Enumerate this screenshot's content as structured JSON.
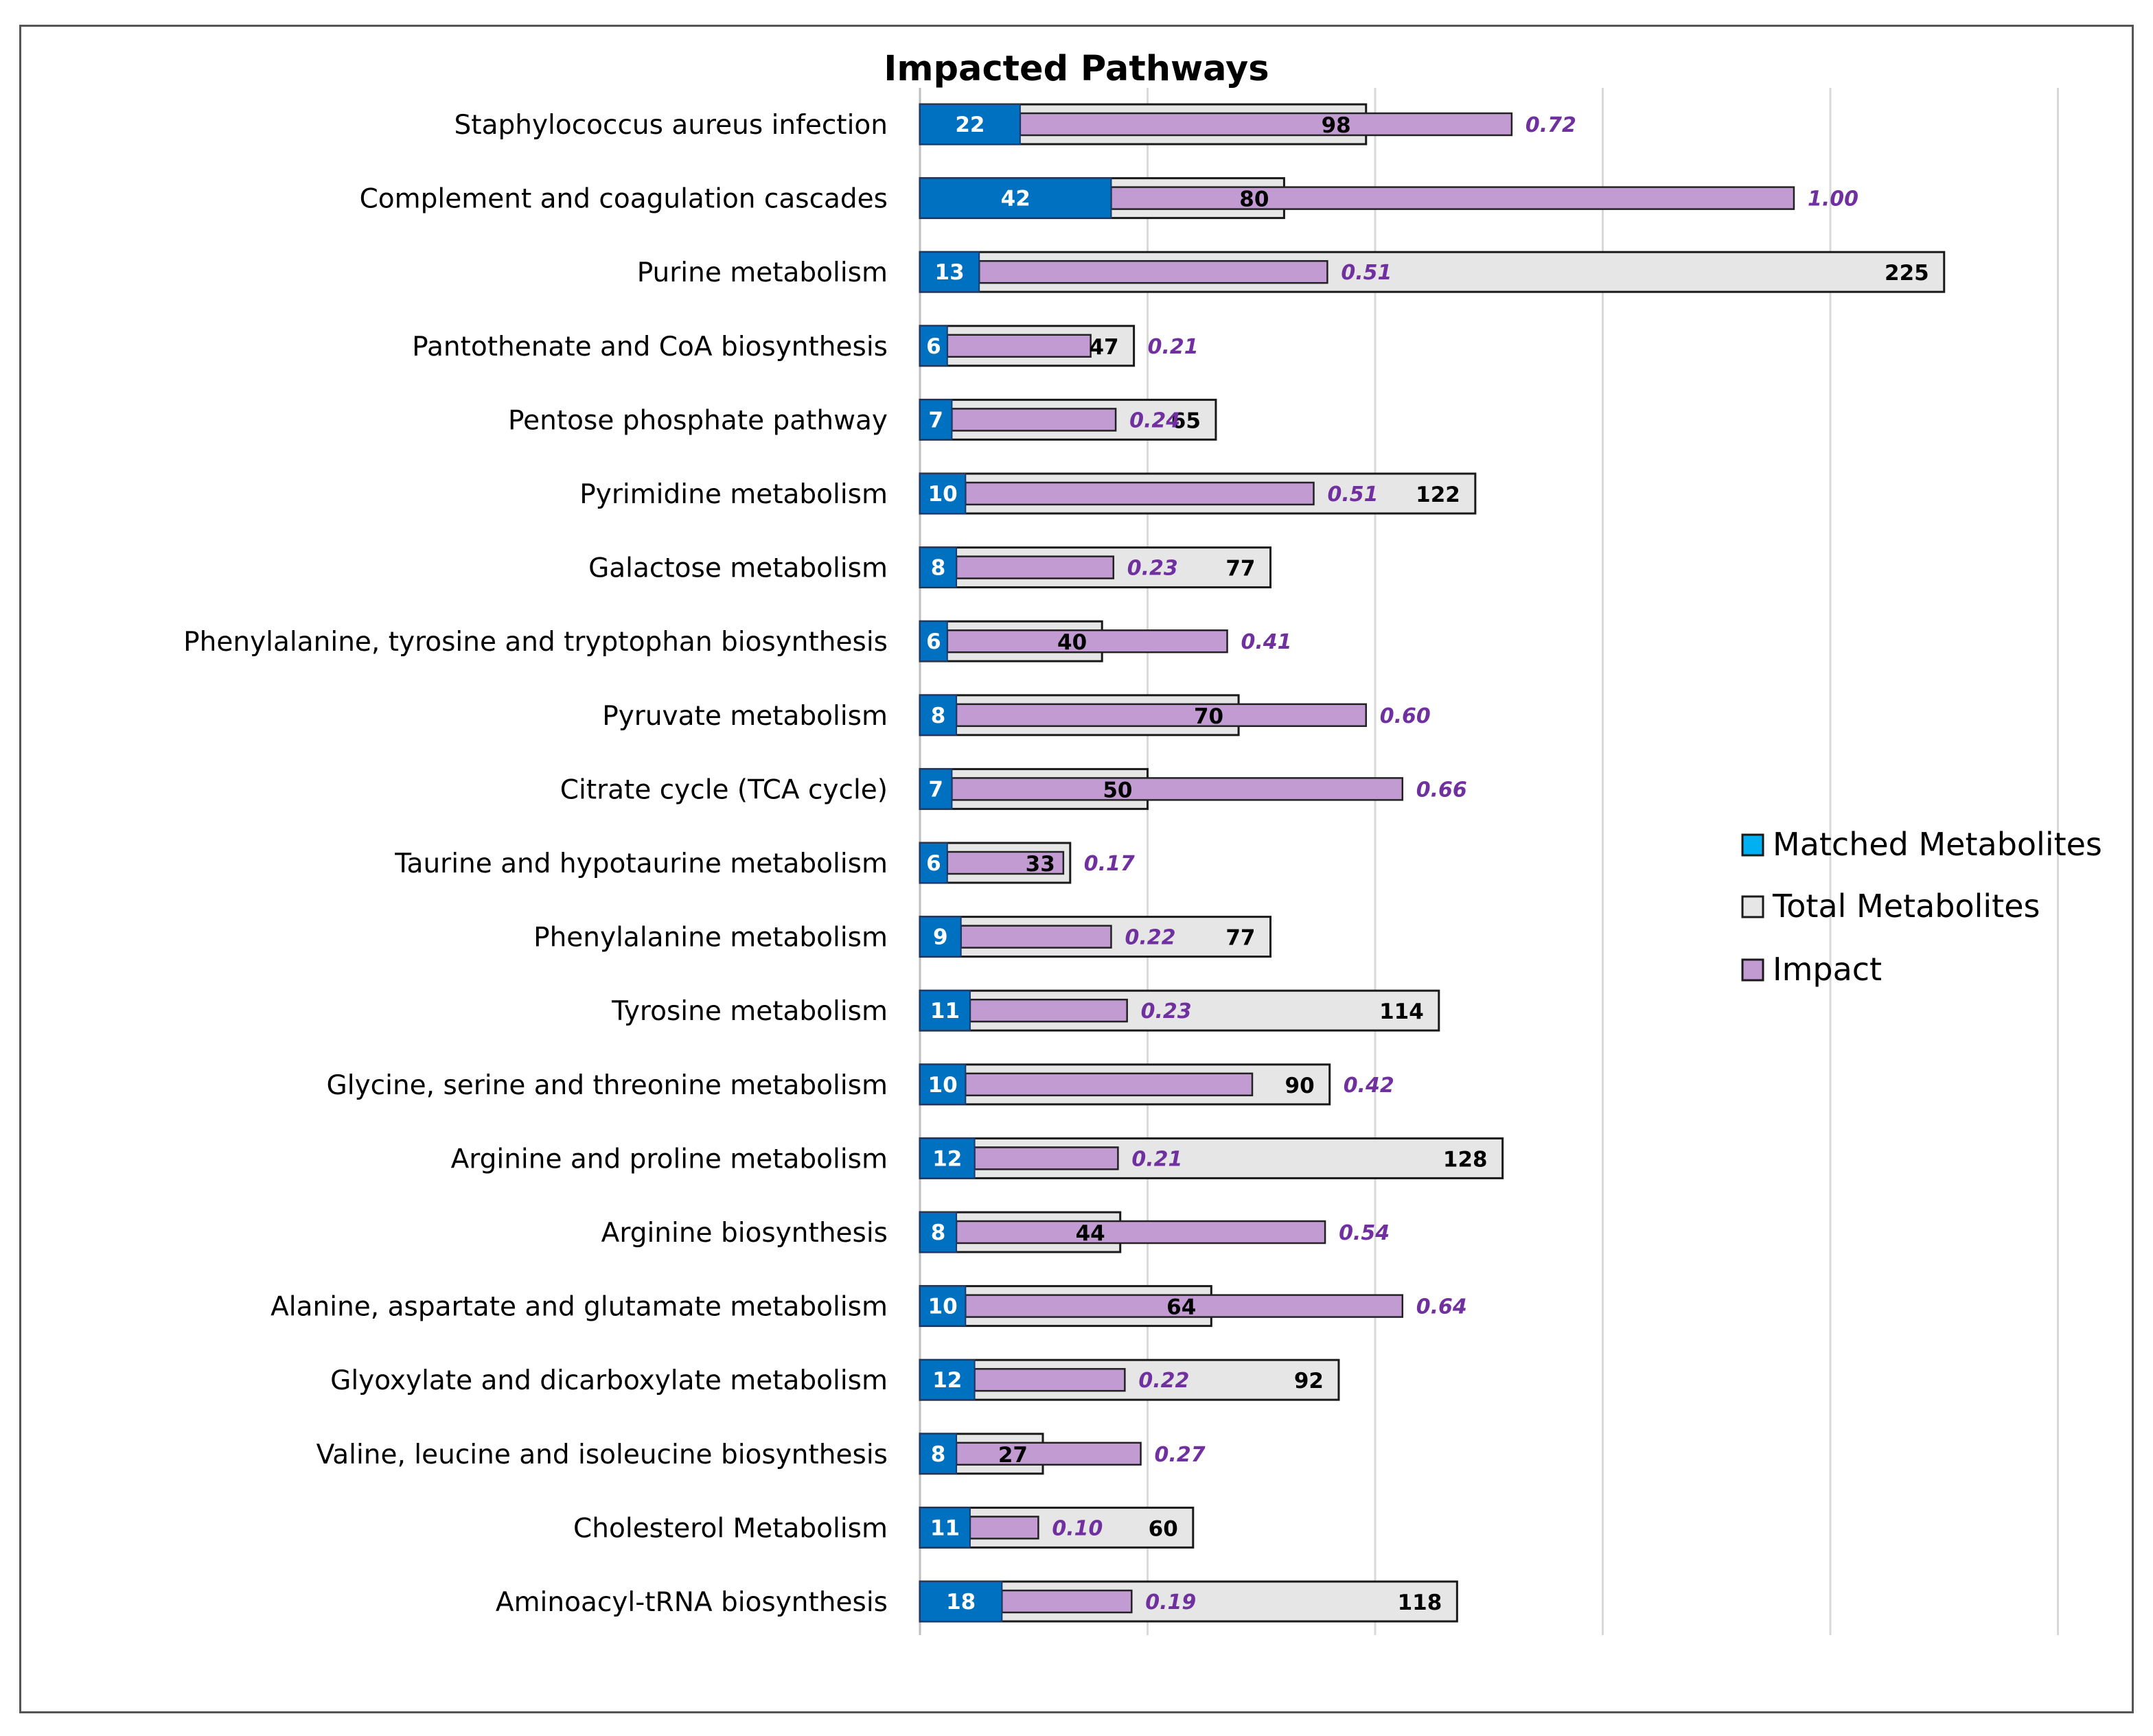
{
  "chart_data": {
    "type": "bar",
    "title": "Impacted Pathways",
    "xlim": [
      0,
      250
    ],
    "categories": [
      "Staphylococcus aureus infection",
      "Complement and coagulation cascades",
      "Purine metabolism",
      "Pantothenate and CoA biosynthesis",
      "Pentose phosphate pathway",
      "Pyrimidine metabolism",
      "Galactose metabolism",
      "Phenylalanine, tyrosine and tryptophan biosynthesis",
      "Pyruvate metabolism",
      "Citrate cycle (TCA cycle)",
      "Taurine and hypotaurine metabolism",
      "Phenylalanine metabolism",
      "Tyrosine metabolism",
      "Glycine, serine and threonine metabolism",
      "Arginine and proline metabolism",
      "Arginine biosynthesis",
      "Alanine, aspartate and glutamate metabolism",
      "Glyoxylate and dicarboxylate metabolism",
      "Valine, leucine and isoleucine biosynthesis",
      "Cholesterol Metabolism",
      "Aminoacyl-tRNA biosynthesis"
    ],
    "series": [
      {
        "name": "Matched Metabolites",
        "color": "#0070c0",
        "values": [
          22,
          42,
          13,
          6,
          7,
          10,
          8,
          6,
          8,
          7,
          6,
          9,
          11,
          10,
          12,
          8,
          10,
          12,
          8,
          11,
          18
        ]
      },
      {
        "name": "Total Metabolites",
        "color": "#e6e6e6",
        "values": [
          98,
          80,
          225,
          47,
          65,
          122,
          77,
          40,
          70,
          50,
          33,
          77,
          114,
          90,
          128,
          44,
          64,
          92,
          27,
          60,
          118
        ]
      },
      {
        "name": "Impact",
        "color": "#c39bd3",
        "values": [
          "0.72",
          "1.00",
          "0.51",
          "0.21",
          "0.24",
          "0.51",
          "0.23",
          "0.41",
          "0.60",
          "0.66",
          "0.17",
          "0.22",
          "0.23",
          "0.42",
          "0.21",
          "0.54",
          "0.64",
          "0.22",
          "0.27",
          "0.10",
          "0.19"
        ]
      }
    ],
    "impact_scale_max_units": 150,
    "legend_position": "right",
    "gridlines": true
  }
}
